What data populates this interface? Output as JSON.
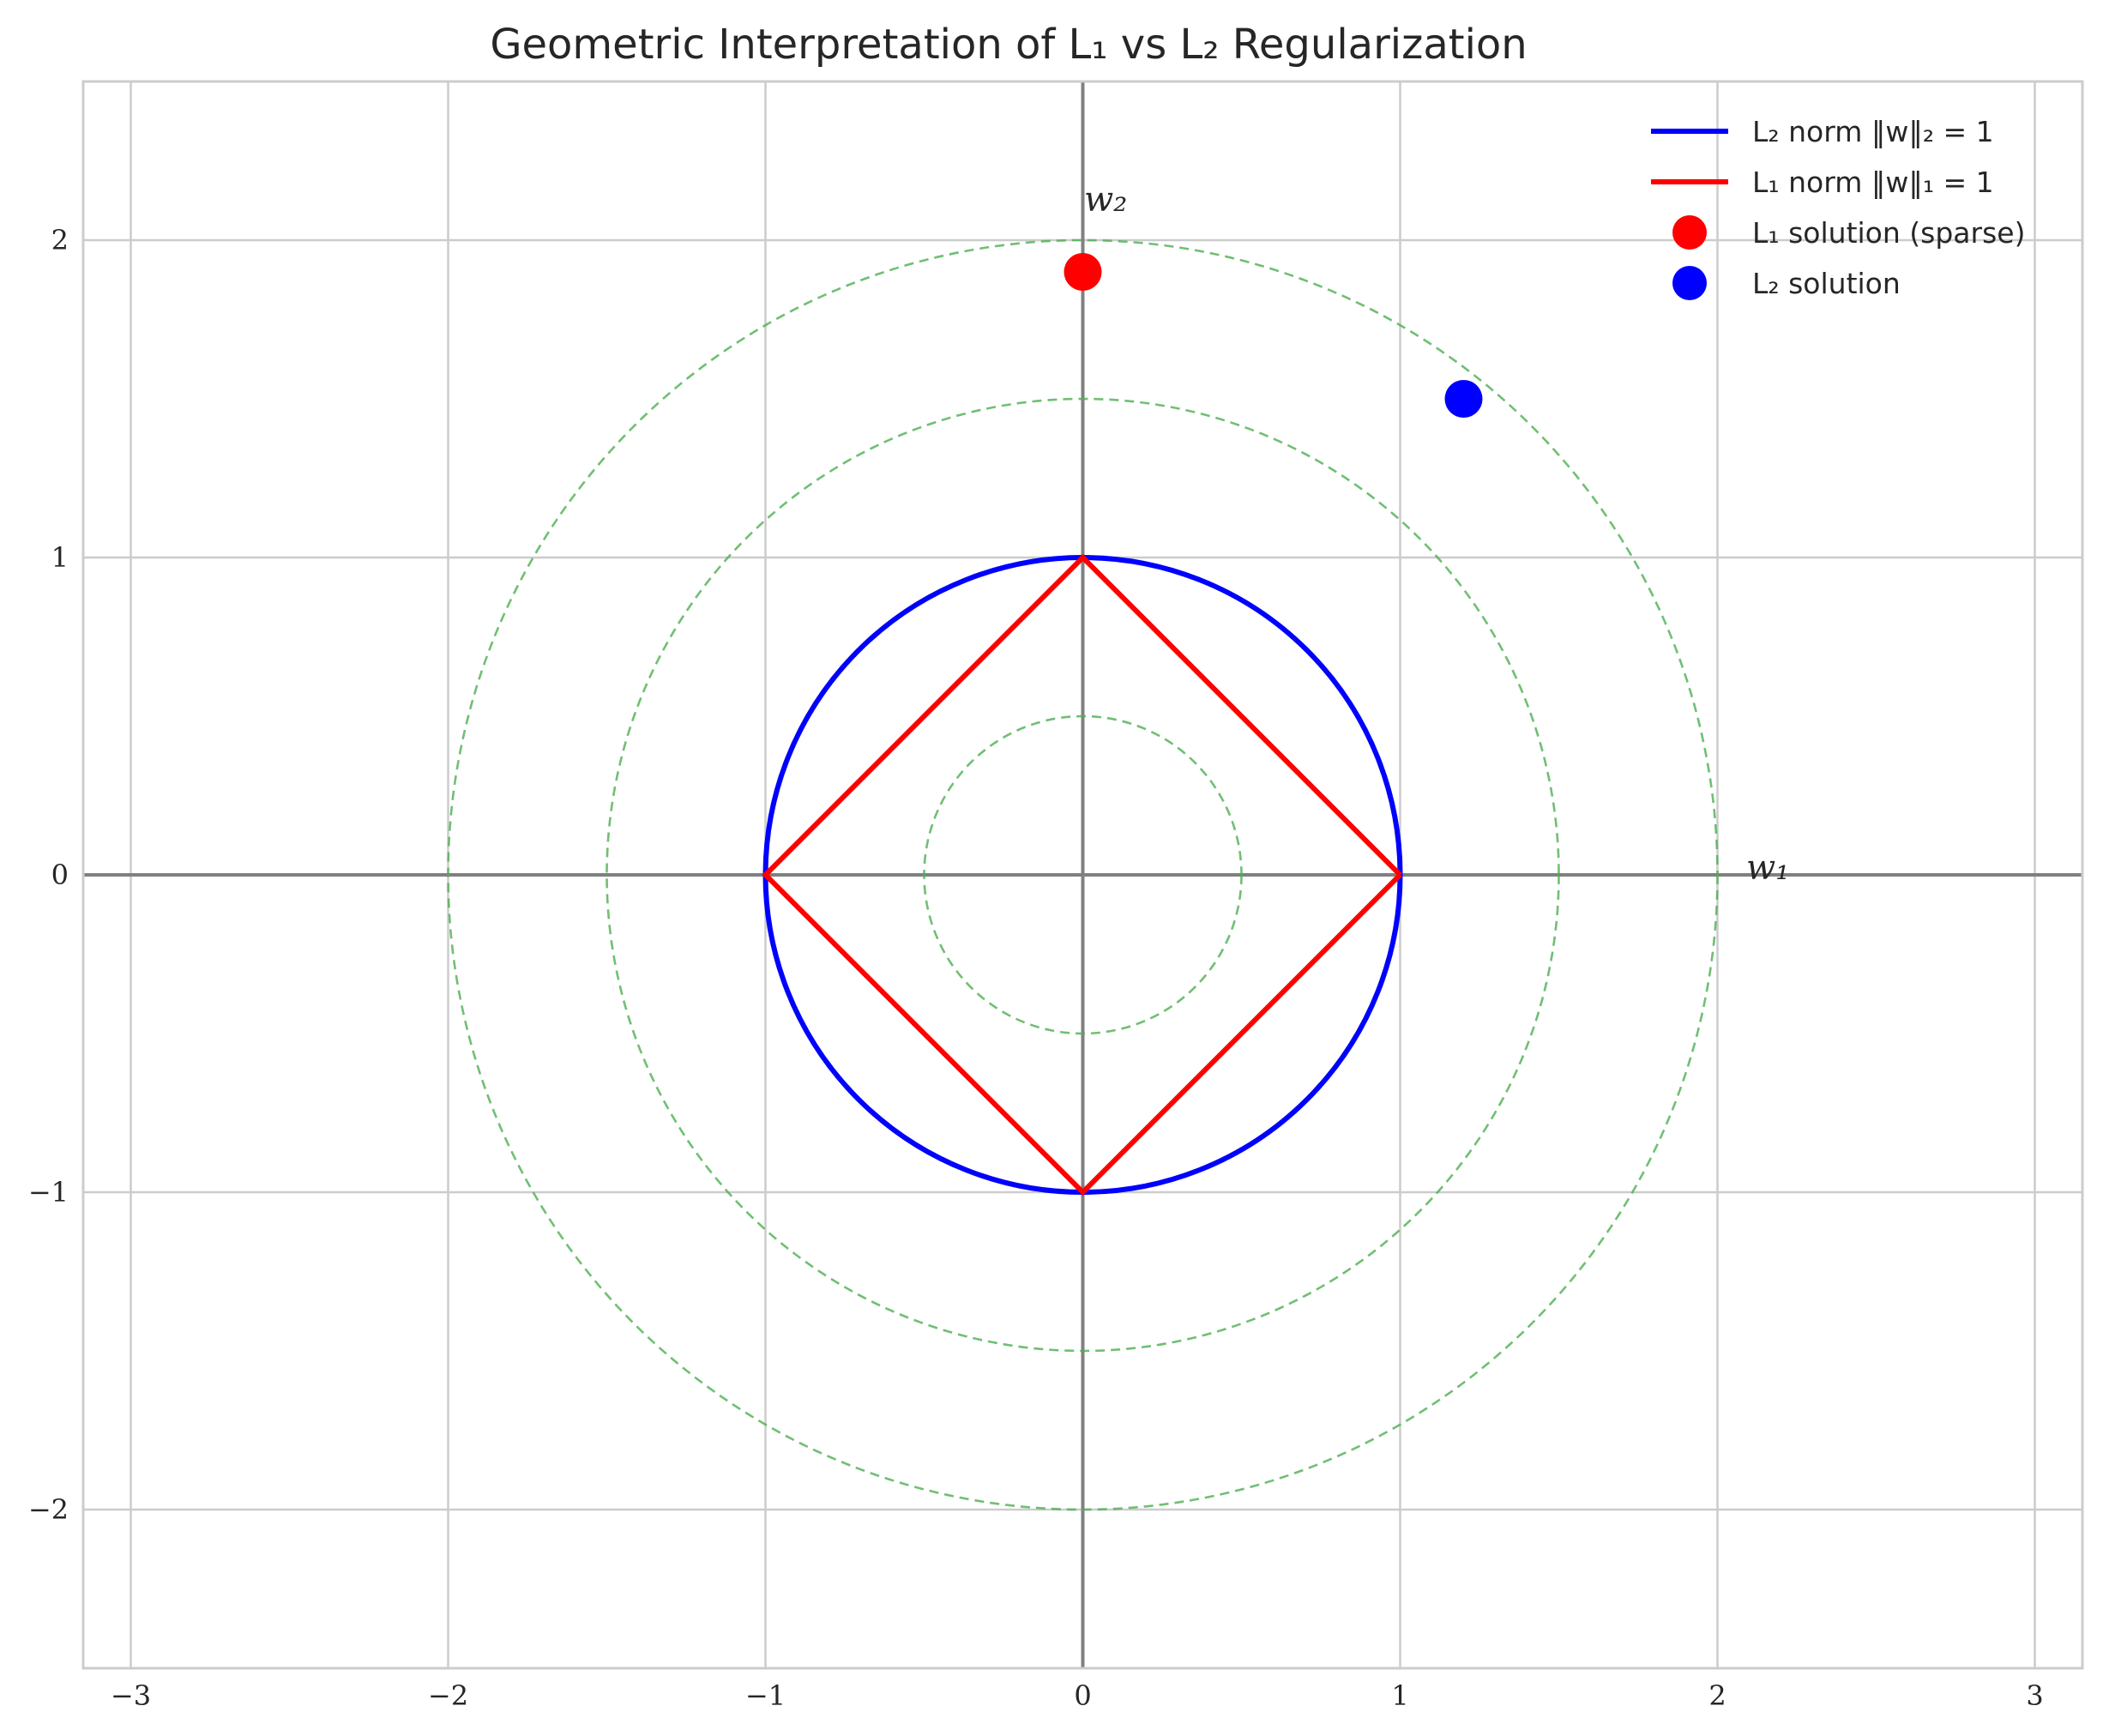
{
  "chart_data": {
    "type": "line",
    "title": "Geometric Interpretation of L₁ vs L₂ Regularization",
    "xlabel": "",
    "ylabel": "",
    "xlim": [
      -3.15,
      3.15
    ],
    "ylim": [
      -2.5,
      2.5
    ],
    "xticks": [
      -3,
      -2,
      -1,
      0,
      1,
      2,
      3
    ],
    "yticks": [
      -2,
      -1,
      0,
      1,
      2
    ],
    "xtick_labels": [
      "−3",
      "−2",
      "−1",
      "0",
      "1",
      "2",
      "3"
    ],
    "ytick_labels": [
      "−2",
      "−1",
      "0",
      "1",
      "2"
    ],
    "grid": true,
    "legend_position": "top-right",
    "axis_annotations": {
      "w1": "w₁",
      "w2": "w₂"
    },
    "series": [
      {
        "name": "L₂ norm ‖w‖₂ = 1",
        "kind": "circle",
        "radius": 1,
        "color": "#0000ff"
      },
      {
        "name": "L₁ norm ‖w‖₁ = 1",
        "kind": "polyline",
        "points": [
          [
            1,
            0
          ],
          [
            0,
            1
          ],
          [
            -1,
            0
          ],
          [
            0,
            -1
          ],
          [
            1,
            0
          ]
        ],
        "color": "#ff0000"
      },
      {
        "name": "L₁ solution (sparse)",
        "kind": "point",
        "x": 0,
        "y": 1.9,
        "color": "#ff0000"
      },
      {
        "name": "L₂ solution",
        "kind": "point",
        "x": 1.2,
        "y": 1.5,
        "color": "#0000ff"
      }
    ],
    "contours": {
      "radii": [
        0.5,
        1.5,
        2.0
      ],
      "style": "dashed",
      "color": "#4caf50"
    }
  }
}
